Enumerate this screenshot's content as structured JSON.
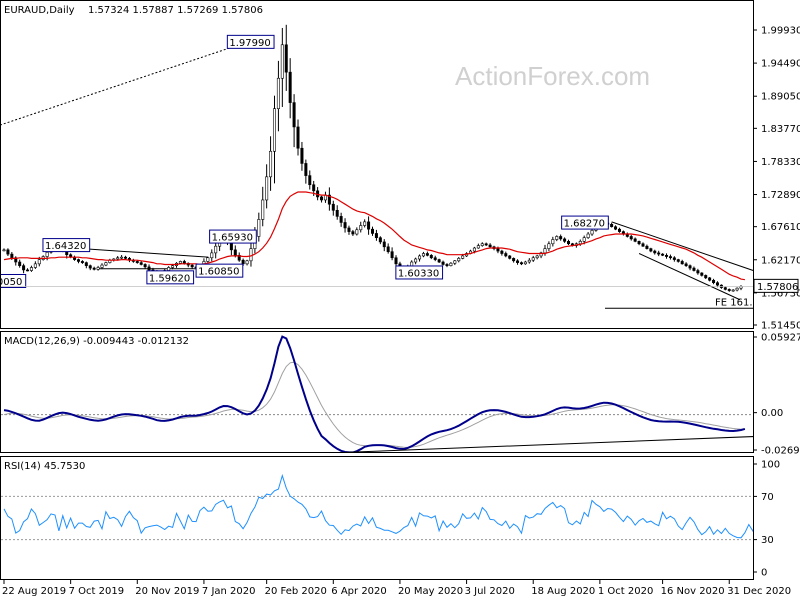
{
  "header": {
    "symbol": "EURAUD,Daily",
    "ohlc": "1.57324 1.57887 1.57269 1.57806"
  },
  "watermark": "ActionForex.com",
  "colors": {
    "candle": "#000000",
    "ma": "#dd0000",
    "macd": "#00008b",
    "signal": "#a0a0a0",
    "rsi": "#1e90ff",
    "label_border": "#00008b"
  },
  "chart_data": [
    {
      "type": "candlestick",
      "title": "EURAUD,Daily",
      "ylim": [
        1.5,
        2.03
      ],
      "y_ticks": [
        1.9993,
        1.9449,
        1.8905,
        1.8377,
        1.7833,
        1.7289,
        1.6761,
        1.6217,
        1.5673,
        1.5145
      ],
      "y_tick_labels": [
        "1.99930",
        "1.94490",
        "1.89050",
        "1.83770",
        "1.78330",
        "1.72890",
        "1.67610",
        "1.62170",
        "1.56730",
        "1.51450"
      ],
      "current_price_label": "1.57806",
      "x_labels": [
        "22 Aug 2019",
        "7 Oct 2019",
        "20 Nov 2019",
        "7 Jan 2020",
        "20 Feb 2020",
        "6 Apr 2020",
        "20 May 2020",
        "3 Jul 2020",
        "18 Aug 2020",
        "1 Oct 2020",
        "16 Nov 2020",
        "31 Dec 2020"
      ],
      "closes": [
        1.638,
        1.631,
        1.625,
        1.618,
        1.612,
        1.605,
        1.604,
        1.609,
        1.615,
        1.622,
        1.627,
        1.634,
        1.638,
        1.641,
        1.643,
        1.637,
        1.63,
        1.626,
        1.622,
        1.619,
        1.617,
        1.612,
        1.608,
        1.606,
        1.609,
        1.613,
        1.617,
        1.621,
        1.623,
        1.625,
        1.626,
        1.624,
        1.621,
        1.619,
        1.617,
        1.614,
        1.61,
        1.605,
        1.601,
        1.596,
        1.599,
        1.604,
        1.609,
        1.612,
        1.616,
        1.619,
        1.616,
        1.613,
        1.61,
        1.609,
        1.613,
        1.619,
        1.625,
        1.633,
        1.644,
        1.654,
        1.659,
        1.649,
        1.638,
        1.629,
        1.621,
        1.615,
        1.62,
        1.64,
        1.66,
        1.688,
        1.72,
        1.758,
        1.8,
        1.87,
        1.92,
        1.975,
        1.93,
        1.88,
        1.84,
        1.805,
        1.78,
        1.76,
        1.745,
        1.735,
        1.725,
        1.72,
        1.728,
        1.713,
        1.703,
        1.693,
        1.683,
        1.674,
        1.668,
        1.664,
        1.671,
        1.678,
        1.684,
        1.672,
        1.665,
        1.658,
        1.651,
        1.643,
        1.635,
        1.625,
        1.615,
        1.608,
        1.603,
        1.611,
        1.618,
        1.623,
        1.628,
        1.632,
        1.629,
        1.625,
        1.622,
        1.618,
        1.614,
        1.612,
        1.616,
        1.62,
        1.624,
        1.628,
        1.632,
        1.636,
        1.641,
        1.645,
        1.648,
        1.646,
        1.643,
        1.64,
        1.636,
        1.632,
        1.628,
        1.624,
        1.62,
        1.617,
        1.615,
        1.618,
        1.621,
        1.625,
        1.628,
        1.633,
        1.64,
        1.648,
        1.655,
        1.66,
        1.656,
        1.652,
        1.648,
        1.645,
        1.648,
        1.652,
        1.658,
        1.664,
        1.67,
        1.675,
        1.679,
        1.682,
        1.68,
        1.676,
        1.672,
        1.668,
        1.664,
        1.66,
        1.656,
        1.652,
        1.648,
        1.644,
        1.64,
        1.636,
        1.633,
        1.631,
        1.629,
        1.627,
        1.625,
        1.622,
        1.619,
        1.615,
        1.612,
        1.608,
        1.604,
        1.6,
        1.596,
        1.592,
        1.588,
        1.584,
        1.58,
        1.576,
        1.573,
        1.571,
        1.572,
        1.575,
        1.578
      ],
      "ma_values": [
        1.622,
        1.623,
        1.624,
        1.624,
        1.625,
        1.625,
        1.625,
        1.624,
        1.624,
        1.624,
        1.624,
        1.624,
        1.625,
        1.625,
        1.626,
        1.626,
        1.626,
        1.626,
        1.626,
        1.626,
        1.625,
        1.625,
        1.624,
        1.623,
        1.622,
        1.622,
        1.621,
        1.621,
        1.621,
        1.621,
        1.622,
        1.622,
        1.621,
        1.621,
        1.621,
        1.62,
        1.619,
        1.618,
        1.617,
        1.615,
        1.615,
        1.614,
        1.614,
        1.614,
        1.614,
        1.615,
        1.615,
        1.615,
        1.615,
        1.615,
        1.614,
        1.615,
        1.616,
        1.618,
        1.62,
        1.623,
        1.625,
        1.627,
        1.628,
        1.628,
        1.628,
        1.627,
        1.627,
        1.628,
        1.631,
        1.635,
        1.641,
        1.649,
        1.659,
        1.673,
        1.688,
        1.706,
        1.718,
        1.726,
        1.73,
        1.733,
        1.733,
        1.733,
        1.732,
        1.731,
        1.729,
        1.728,
        1.728,
        1.726,
        1.724,
        1.721,
        1.717,
        1.713,
        1.709,
        1.705,
        1.702,
        1.7,
        1.699,
        1.696,
        1.693,
        1.689,
        1.686,
        1.682,
        1.677,
        1.672,
        1.666,
        1.66,
        1.654,
        1.65,
        1.646,
        1.644,
        1.642,
        1.64,
        1.638,
        1.637,
        1.635,
        1.633,
        1.632,
        1.63,
        1.63,
        1.63,
        1.63,
        1.63,
        1.631,
        1.632,
        1.634,
        1.636,
        1.638,
        1.64,
        1.641,
        1.641,
        1.641,
        1.641,
        1.64,
        1.639,
        1.637,
        1.635,
        1.634,
        1.633,
        1.632,
        1.632,
        1.632,
        1.632,
        1.632,
        1.634,
        1.636,
        1.639,
        1.641,
        1.643,
        1.644,
        1.645,
        1.646,
        1.647,
        1.649,
        1.651,
        1.653,
        1.656,
        1.658,
        1.661,
        1.662,
        1.663,
        1.664,
        1.664,
        1.664,
        1.664,
        1.664,
        1.663,
        1.662,
        1.661,
        1.659,
        1.657,
        1.655,
        1.653,
        1.651,
        1.649,
        1.647,
        1.645,
        1.643,
        1.641,
        1.639,
        1.636,
        1.633,
        1.629,
        1.626,
        1.622,
        1.618,
        1.614,
        1.61,
        1.606,
        1.602,
        1.598,
        1.595,
        1.593,
        1.59,
        1.589
      ],
      "annotations": [
        {
          "text": "1.97990",
          "bar": 71
        },
        {
          "text": "1.68270",
          "bar": 155
        },
        {
          "text": "1.64320",
          "bar": 13
        },
        {
          "text": "1.65930",
          "bar": 55
        },
        {
          "text": "1.60330",
          "bar": 102
        },
        {
          "text": "1.59620",
          "bar": 39
        },
        {
          "text": "1.60850",
          "bar": 49
        },
        {
          "text": "1.60050",
          "bar": 0
        }
      ],
      "fe_label": "FE 161.8"
    },
    {
      "type": "line",
      "title": "MACD(12,26,9) -0.009443 -0.012132",
      "y_tick_labels": [
        "0.059272",
        "0.00",
        "0.00",
        "-0.026978"
      ],
      "ylim": [
        -0.03,
        0.062
      ],
      "macd_values": [
        0.0035,
        0.003,
        0.0021,
        0.001,
        -0.0002,
        -0.0015,
        -0.0028,
        -0.0039,
        -0.0045,
        -0.0046,
        -0.0038,
        -0.0025,
        -0.0011,
        0.0002,
        0.0012,
        0.0016,
        0.0012,
        0.0004,
        -0.0006,
        -0.0016,
        -0.0024,
        -0.0032,
        -0.0039,
        -0.0044,
        -0.0046,
        -0.0043,
        -0.0036,
        -0.0026,
        -0.0015,
        -0.0006,
        0.0001,
        0.0004,
        0.0003,
        -0.0,
        -0.0004,
        -0.0009,
        -0.0015,
        -0.0023,
        -0.0032,
        -0.0042,
        -0.0047,
        -0.0048,
        -0.0044,
        -0.0037,
        -0.0028,
        -0.0018,
        -0.0012,
        -0.0009,
        -0.0008,
        -0.0007,
        -0.0003,
        0.0004,
        0.0013,
        0.0024,
        0.0039,
        0.0055,
        0.0066,
        0.0065,
        0.0057,
        0.0043,
        0.0026,
        0.001,
        0.0001,
        0.0009,
        0.0031,
        0.0069,
        0.0123,
        0.0193,
        0.0278,
        0.0393,
        0.0519,
        0.0596,
        0.0581,
        0.0507,
        0.0413,
        0.0311,
        0.0213,
        0.0118,
        0.0032,
        -0.0043,
        -0.0108,
        -0.0163,
        -0.0188,
        -0.0216,
        -0.0241,
        -0.0261,
        -0.0276,
        -0.0285,
        -0.0288,
        -0.0288,
        -0.0279,
        -0.0264,
        -0.0245,
        -0.0238,
        -0.0234,
        -0.0232,
        -0.0232,
        -0.0235,
        -0.024,
        -0.0247,
        -0.0255,
        -0.0261,
        -0.0262,
        -0.0254,
        -0.0241,
        -0.0224,
        -0.0205,
        -0.0184,
        -0.0166,
        -0.0151,
        -0.014,
        -0.0131,
        -0.0125,
        -0.0119,
        -0.011,
        -0.0098,
        -0.0084,
        -0.0067,
        -0.0049,
        -0.0031,
        -0.0013,
        0.0004,
        0.0019,
        0.0028,
        0.0033,
        0.0035,
        0.0033,
        0.0028,
        0.0021,
        0.0012,
        0.0002,
        -0.0008,
        -0.0016,
        -0.0019,
        -0.0019,
        -0.0016,
        -0.0012,
        -0.0006,
        0.0003,
        0.0015,
        0.0029,
        0.0043,
        0.0052,
        0.0055,
        0.0054,
        0.0049,
        0.0046,
        0.0047,
        0.0051,
        0.0058,
        0.0067,
        0.0077,
        0.0085,
        0.0091,
        0.009,
        0.0085,
        0.0076,
        0.0064,
        0.005,
        0.0035,
        0.002,
        0.0006,
        -0.0008,
        -0.002,
        -0.0031,
        -0.0041,
        -0.0047,
        -0.0051,
        -0.0052,
        -0.0053,
        -0.0052,
        -0.0053,
        -0.0054,
        -0.0058,
        -0.0063,
        -0.0068,
        -0.0075,
        -0.0082,
        -0.0089,
        -0.0096,
        -0.0102,
        -0.0108,
        -0.0112,
        -0.0117,
        -0.0121,
        -0.0124,
        -0.0125,
        -0.0122,
        -0.0117,
        -0.0109
      ],
      "signal_values": [
        0.0,
        0.0007,
        0.001,
        0.001,
        0.0008,
        0.0003,
        -0.0003,
        -0.0011,
        -0.0018,
        -0.0024,
        -0.0027,
        -0.0026,
        -0.0023,
        -0.0018,
        -0.0012,
        -0.0006,
        -0.0003,
        -0.0001,
        -0.0002,
        -0.0005,
        -0.0009,
        -0.0013,
        -0.0018,
        -0.0023,
        -0.0028,
        -0.0031,
        -0.0032,
        -0.0031,
        -0.0028,
        -0.0024,
        -0.0019,
        -0.0014,
        -0.001,
        -0.0008,
        -0.0007,
        -0.0007,
        -0.0009,
        -0.0012,
        -0.0016,
        -0.0022,
        -0.0026,
        -0.003,
        -0.0033,
        -0.0033,
        -0.0032,
        -0.0029,
        -0.0026,
        -0.0022,
        -0.0019,
        -0.0017,
        -0.0014,
        -0.001,
        -0.0005,
        0.0001,
        0.0009,
        0.0018,
        0.0028,
        0.0035,
        0.004,
        0.0041,
        0.0038,
        0.0033,
        0.0027,
        0.0023,
        0.0025,
        0.0034,
        0.0052,
        0.008,
        0.0119,
        0.0174,
        0.0243,
        0.0314,
        0.0368,
        0.0396,
        0.04,
        0.0382,
        0.0348,
        0.0302,
        0.0248,
        0.019,
        0.013,
        0.0071,
        0.0019,
        -0.0028,
        -0.0071,
        -0.0109,
        -0.0142,
        -0.0171,
        -0.0194,
        -0.0213,
        -0.0226,
        -0.0234,
        -0.0236,
        -0.0237,
        -0.0236,
        -0.0235,
        -0.0234,
        -0.0234,
        -0.0235,
        -0.0237,
        -0.0241,
        -0.0245,
        -0.0249,
        -0.025,
        -0.0248,
        -0.0243,
        -0.0236,
        -0.0226,
        -0.0214,
        -0.0201,
        -0.0189,
        -0.0177,
        -0.0167,
        -0.0157,
        -0.0148,
        -0.0138,
        -0.0127,
        -0.0115,
        -0.0102,
        -0.0088,
        -0.0073,
        -0.0058,
        -0.0042,
        -0.0028,
        -0.0015,
        -0.0005,
        0.0003,
        0.0007,
        0.0009,
        0.0009,
        0.0008,
        0.0004,
        0.0,
        -0.0004,
        -0.0007,
        -0.0008,
        -0.0009,
        -0.0008,
        -0.0006,
        -0.0002,
        0.0004,
        0.0011,
        0.0019,
        0.0026,
        0.0032,
        0.0035,
        0.0037,
        0.0039,
        0.0042,
        0.0045,
        0.005,
        0.0055,
        0.0062,
        0.0068,
        0.0072,
        0.0075,
        0.0075,
        0.0073,
        0.0068,
        0.0062,
        0.0053,
        0.0044,
        0.0033,
        0.0023,
        0.0012,
        0.0001,
        -0.0008,
        -0.0017,
        -0.0024,
        -0.003,
        -0.0034,
        -0.0038,
        -0.0041,
        -0.0044,
        -0.0047,
        -0.005,
        -0.0054,
        -0.0058,
        -0.0063,
        -0.0069,
        -0.0074,
        -0.008,
        -0.0085,
        -0.0091,
        -0.0096,
        -0.0101,
        -0.0106,
        -0.0109,
        -0.0112,
        -0.0113
      ],
      "trendline": {
        "from": {
          "bar": 87,
          "value": -0.0288
        },
        "to": {
          "bar": 199,
          "value": -0.0158
        }
      }
    },
    {
      "type": "line",
      "title": "RSI(14) 45.7530",
      "ylim": [
        0,
        100
      ],
      "y_tick_labels": [
        "100",
        "70",
        "30",
        "0"
      ],
      "levels": [
        70,
        30
      ],
      "rsi_values": [
        58.47,
        51.53,
        49.21,
        36.0,
        38.46,
        46.52,
        49.39,
        58.3,
        53.96,
        43.27,
        45.86,
        48.43,
        53.84,
        52.81,
        38.1,
        52.17,
        40.82,
        49.91,
        40.53,
        45.27,
        45.29,
        42.11,
        41.35,
        47.14,
        47.76,
        39.96,
        55.85,
        49.58,
        50.69,
        48.42,
        42.26,
        51.38,
        56.16,
        50.25,
        47.51,
        36.06,
        40.88,
        42.0,
        42.89,
        43.47,
        41.6,
        39.38,
        42.44,
        41.34,
        54.24,
        47.19,
        40.0,
        52.66,
        46.86,
        46.69,
        56.97,
        60.02,
        56.26,
        56.59,
        62.73,
        64.93,
        66.41,
        59.41,
        61.07,
        46.63,
        44.73,
        40.05,
        45.96,
        54.31,
        60.22,
        69.29,
        68.09,
        72.13,
        71.27,
        75.21,
        76.74,
        89.25,
        77.59,
        70.16,
        67.82,
        64.7,
        62.65,
        58.39,
        51.06,
        50.36,
        51.33,
        56.44,
        47.58,
        43.31,
        43.04,
        38.71,
        34.87,
        39.07,
        38.34,
        42.46,
        44.48,
        42.71,
        51.05,
        44.92,
        50.16,
        41.44,
        40.41,
        38.66,
        38.64,
        37.21,
        35.7,
        37.76,
        41.25,
        42.92,
        50.57,
        42.42,
        54.7,
        52.04,
        51.73,
        50.07,
        51.98,
        38.18,
        47.22,
        41.39,
        44.72,
        40.98,
        44.74,
        53.91,
        49.71,
        50.06,
        54.58,
        49.1,
        59.6,
        56.05,
        48.73,
        48.33,
        44.82,
        43.09,
        47.13,
        40.43,
        44.46,
        41.98,
        35.95,
        52.25,
        49.95,
        50.79,
        53.99,
        53.38,
        58.82,
        61.87,
        64.45,
        59.55,
        61.46,
        58.8,
        45.67,
        43.74,
        47.21,
        44.54,
        55.16,
        51.41,
        66.21,
        62.65,
        60.36,
        56.08,
        58.81,
        58.28,
        55.23,
        50.68,
        46.63,
        51.73,
        48.74,
        43.46,
        47.48,
        49.56,
        45.93,
        47.1,
        44.65,
        42.85,
        55.3,
        49.23,
        51.7,
        49.28,
        42.5,
        39.3,
        45.5,
        50.69,
        46.43,
        39.24,
        34.5,
        37.21,
        42.01,
        34.98,
        39.08,
        35.61,
        40.46,
        35.71,
        33.51,
        31.98,
        31.63,
        36.35,
        43.99,
        38.02,
        45.75
      ],
      "x_labels": [
        "22 Aug 2019",
        "7 Oct 2019",
        "20 Nov 2019",
        "7 Jan 2020",
        "20 Feb 2020",
        "6 Apr 2020",
        "20 May 2020",
        "3 Jul 2020",
        "18 Aug 2020",
        "1 Oct 2020",
        "16 Nov 2020",
        "31 Dec 2020"
      ]
    }
  ]
}
